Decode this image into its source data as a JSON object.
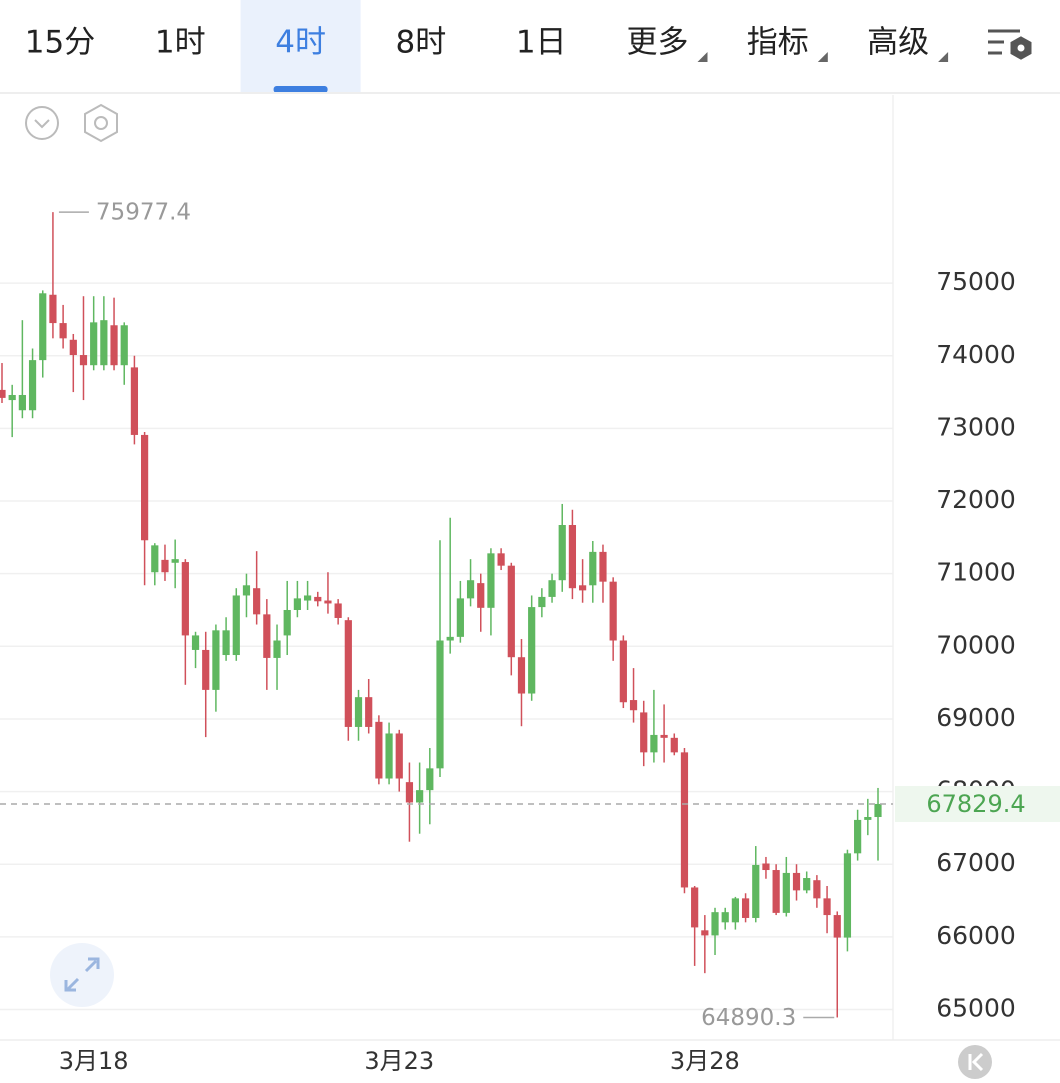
{
  "toolbar": {
    "tabs": [
      "15分",
      "1时",
      "4时",
      "8时",
      "1日",
      "更多",
      "指标",
      "高级"
    ],
    "active": 2
  },
  "chart_data": {
    "type": "candlestick",
    "categories": [
      null,
      null,
      null,
      null,
      null,
      null,
      null,
      null,
      null,
      "3月18",
      null,
      null,
      null,
      null,
      null,
      null,
      null,
      null,
      null,
      null,
      null,
      null,
      null,
      null,
      null,
      null,
      null,
      null,
      null,
      null,
      null,
      null,
      null,
      null,
      null,
      null,
      null,
      null,
      null,
      "3月23",
      null,
      null,
      null,
      null,
      null,
      null,
      null,
      null,
      null,
      null,
      null,
      null,
      null,
      null,
      null,
      null,
      null,
      null,
      null,
      null,
      null,
      null,
      null,
      null,
      null,
      null,
      null,
      null,
      null,
      "3月28",
      null,
      null,
      null,
      null,
      null,
      null,
      null,
      null,
      null,
      null,
      null,
      null,
      null,
      null,
      null,
      null,
      null
    ],
    "open": [
      73530,
      73390,
      73250,
      73250,
      73940,
      74840,
      74450,
      74220,
      74010,
      73870,
      73870,
      74420,
      73870,
      73840,
      72910,
      71020,
      71190,
      71150,
      71160,
      69950,
      69950,
      69400,
      69880,
      69880,
      70700,
      70800,
      70440,
      69840,
      70150,
      70500,
      70630,
      70680,
      70630,
      70590,
      70360,
      68890,
      69300,
      68960,
      68180,
      68800,
      68130,
      67850,
      68020,
      68320,
      70080,
      70130,
      70660,
      70870,
      70530,
      71280,
      71110,
      69850,
      69350,
      70540,
      70680,
      70910,
      71670,
      70840,
      70840,
      71300,
      70890,
      70080,
      69260,
      69090,
      68540,
      68780,
      68740,
      68540,
      66680,
      66090,
      66020,
      66200,
      66200,
      66530,
      66260,
      67010,
      66920,
      66330,
      66880,
      66640,
      66780,
      66530,
      66300,
      65990,
      67150,
      67610,
      67650
    ],
    "high": [
      73900,
      73600,
      74490,
      74100,
      74900,
      75977.4,
      74700,
      74300,
      74820,
      74820,
      74820,
      74800,
      74460,
      74000,
      72950,
      71420,
      71400,
      71470,
      71200,
      70200,
      70200,
      70300,
      70400,
      70800,
      71000,
      71310,
      70650,
      70300,
      70900,
      70900,
      70900,
      70750,
      71020,
      70650,
      70400,
      69400,
      69550,
      69050,
      68950,
      68850,
      68400,
      68400,
      68600,
      71460,
      71770,
      70900,
      71200,
      71000,
      71350,
      71350,
      71150,
      70100,
      70700,
      70800,
      71000,
      71960,
      71880,
      71200,
      71450,
      71400,
      70950,
      70150,
      69700,
      69250,
      69400,
      69200,
      68800,
      68600,
      66700,
      66300,
      66400,
      66400,
      66550,
      66600,
      67250,
      67100,
      67000,
      67100,
      67000,
      66900,
      66850,
      66700,
      66350,
      67200,
      67750,
      67900,
      68050
    ],
    "low": [
      73350,
      72880,
      73140,
      73140,
      73700,
      74240,
      74100,
      73500,
      73390,
      73800,
      73800,
      73800,
      73600,
      72780,
      70840,
      70840,
      70900,
      70800,
      69470,
      69700,
      68750,
      69100,
      69800,
      69800,
      70400,
      70300,
      69400,
      69400,
      69880,
      70400,
      70500,
      70550,
      70450,
      70300,
      68700,
      68700,
      68800,
      68100,
      68100,
      68000,
      67310,
      67420,
      67550,
      68200,
      69900,
      70050,
      70550,
      70200,
      70150,
      71050,
      69600,
      68900,
      69250,
      70400,
      70600,
      70750,
      70650,
      70600,
      70600,
      70600,
      69800,
      69150,
      68950,
      68350,
      68400,
      68400,
      68500,
      66600,
      65600,
      65500,
      65750,
      66100,
      66100,
      66200,
      66200,
      66800,
      66300,
      66280,
      66500,
      66600,
      66400,
      66050,
      64890.3,
      65800,
      67050,
      67400,
      67050
    ],
    "close": [
      73420,
      73460,
      73460,
      73940,
      74860,
      74450,
      74240,
      74010,
      73870,
      74460,
      74490,
      73870,
      74420,
      72910,
      71460,
      71390,
      71020,
      71200,
      70150,
      70150,
      69400,
      70220,
      70220,
      70700,
      70840,
      70440,
      69840,
      70080,
      70500,
      70660,
      70700,
      70620,
      70590,
      70390,
      68890,
      69300,
      68890,
      68180,
      68800,
      68180,
      67850,
      68020,
      68320,
      70080,
      70130,
      70660,
      70910,
      70530,
      71280,
      71110,
      69850,
      69350,
      70540,
      70680,
      70910,
      71670,
      70800,
      70770,
      71300,
      70890,
      70080,
      69230,
      69120,
      68540,
      68780,
      68740,
      68540,
      66680,
      66130,
      66020,
      66340,
      66340,
      66530,
      66260,
      66990,
      66920,
      66330,
      66880,
      66640,
      66810,
      66530,
      66300,
      65990,
      67150,
      67610,
      67650,
      67829.4
    ],
    "up_color": "#5fb760",
    "down_color": "#d0505a",
    "ylim": [
      64580,
      77590
    ],
    "yticks": [
      65000,
      66000,
      67000,
      68000,
      69000,
      70000,
      71000,
      72000,
      73000,
      74000,
      75000
    ],
    "grid": true
  }
}
